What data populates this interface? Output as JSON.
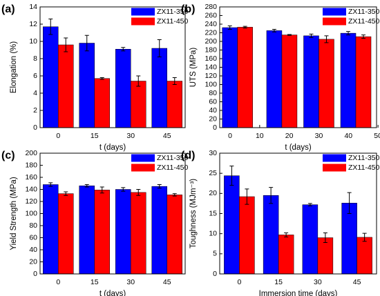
{
  "chart_data": [
    {
      "type": "bar",
      "panel": "(a)",
      "xlabel": "t (days)",
      "ylabel": "Elongation (%)",
      "categories": [
        "0",
        "15",
        "30",
        "45"
      ],
      "ylim": [
        0,
        14
      ],
      "yticks": [
        0,
        2,
        4,
        6,
        8,
        10,
        12,
        14
      ],
      "legend": "upper right",
      "series": [
        {
          "name": "ZX11-350",
          "color": "#0000ff",
          "values": [
            11.7,
            9.8,
            9.1,
            9.2
          ],
          "errors": [
            0.9,
            0.9,
            0.2,
            1.0
          ]
        },
        {
          "name": "ZX11-450",
          "color": "#ff0000",
          "values": [
            9.6,
            5.7,
            5.4,
            5.4
          ],
          "errors": [
            0.8,
            0.1,
            0.6,
            0.4
          ]
        }
      ]
    },
    {
      "type": "bar",
      "panel": "(b)",
      "xlabel": "t (days)",
      "ylabel": "UTS (MPa)",
      "x": [
        2.5,
        17.5,
        30,
        42.5
      ],
      "xlim": [
        -3.5,
        49.5
      ],
      "xticks": [
        0,
        10,
        20,
        30,
        40,
        50
      ],
      "ylim": [
        0,
        280
      ],
      "yticks": [
        0,
        20,
        40,
        60,
        80,
        100,
        120,
        140,
        160,
        180,
        200,
        220,
        240,
        260,
        280
      ],
      "legend": "upper right",
      "series": [
        {
          "name": "ZX11-350",
          "color": "#0000ff",
          "values": [
            232,
            225,
            213,
            219
          ],
          "errors": [
            4,
            3,
            4,
            4
          ]
        },
        {
          "name": "ZX11-450",
          "color": "#ff0000",
          "values": [
            233,
            215,
            205,
            211
          ],
          "errors": [
            2,
            1,
            8,
            4
          ]
        }
      ]
    },
    {
      "type": "bar",
      "panel": "(c)",
      "xlabel": "t (days)",
      "ylabel": "Yield Strength (MPa)",
      "categories": [
        "0",
        "15",
        "30",
        "45"
      ],
      "ylim": [
        0,
        200
      ],
      "yticks": [
        0,
        20,
        40,
        60,
        80,
        100,
        120,
        140,
        160,
        180,
        200
      ],
      "legend": "upper right",
      "series": [
        {
          "name": "ZX11-350",
          "color": "#0000ff",
          "values": [
            148,
            146,
            140,
            145
          ],
          "errors": [
            3,
            2,
            3,
            3
          ]
        },
        {
          "name": "ZX11-450",
          "color": "#ff0000",
          "values": [
            133,
            139,
            135,
            131
          ],
          "errors": [
            3,
            5,
            5,
            2
          ]
        }
      ]
    },
    {
      "type": "bar",
      "panel": "(d)",
      "xlabel": "Immersion time (days)",
      "ylabel": "Toughness (MJm⁻³)",
      "categories": [
        "0",
        "15",
        "30",
        "45"
      ],
      "ylim": [
        0,
        30
      ],
      "yticks": [
        0,
        5,
        10,
        15,
        20,
        25,
        30
      ],
      "legend": "upper right",
      "series": [
        {
          "name": "ZX11-350",
          "color": "#0000ff",
          "values": [
            24.4,
            19.5,
            17.2,
            17.6
          ],
          "errors": [
            2.4,
            2.0,
            0.3,
            2.6
          ]
        },
        {
          "name": "ZX11-450",
          "color": "#ff0000",
          "values": [
            19.2,
            9.7,
            9.0,
            9.1
          ],
          "errors": [
            1.9,
            0.5,
            1.2,
            1.0
          ]
        }
      ]
    }
  ]
}
